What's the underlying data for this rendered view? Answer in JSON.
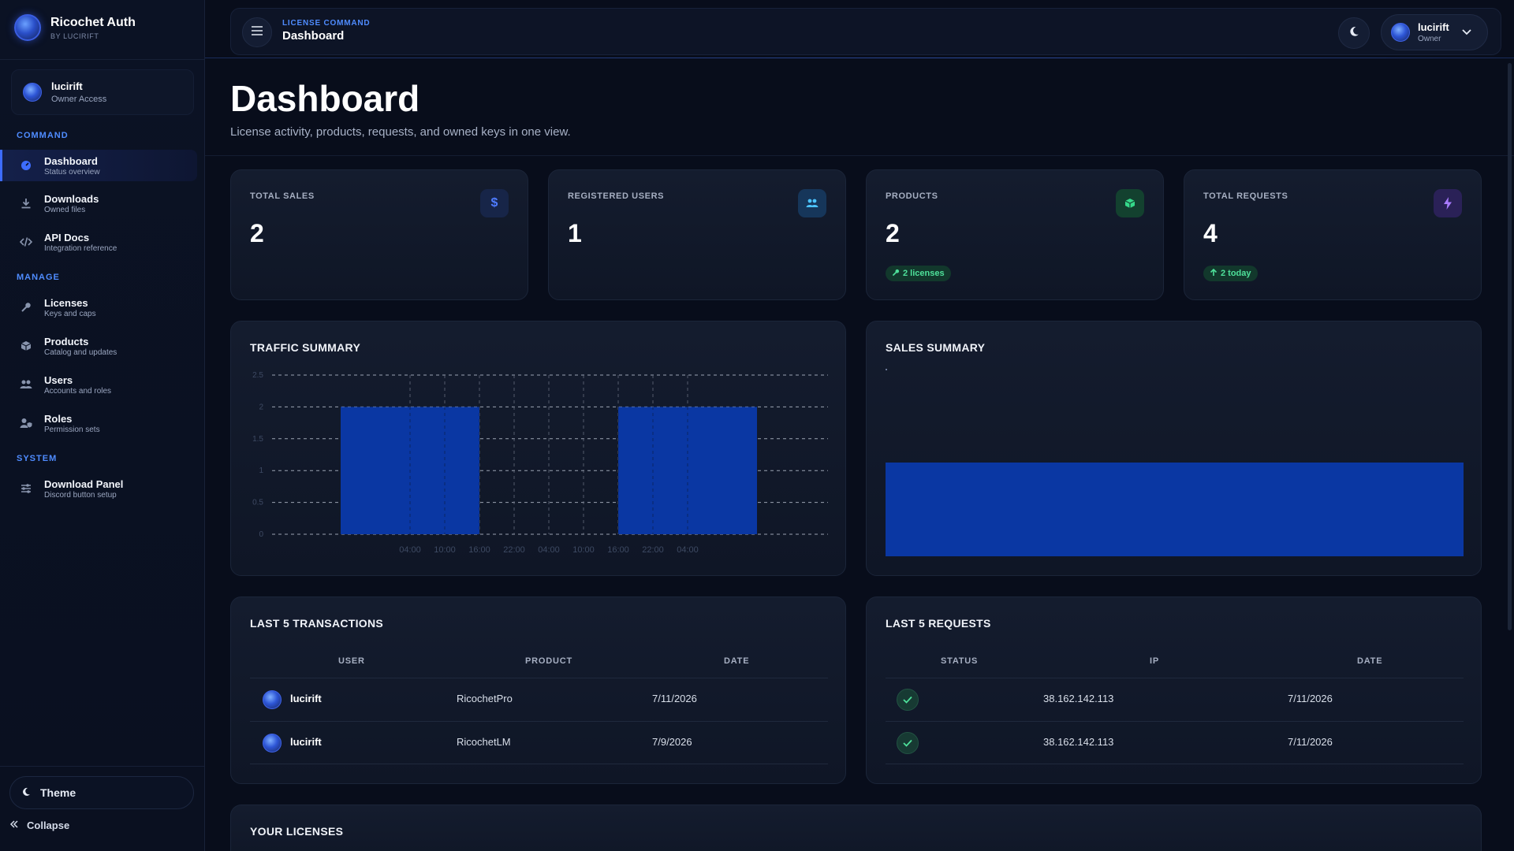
{
  "brand": {
    "name": "Ricochet Auth",
    "sub": "BY LUCIRIFT"
  },
  "user_card": {
    "name": "lucirift",
    "role": "Owner Access"
  },
  "sidebar": {
    "sections": {
      "command": "COMMAND",
      "manage": "MANAGE",
      "system": "SYSTEM"
    },
    "items": [
      {
        "title": "Dashboard",
        "sub": "Status overview",
        "icon": "gauge-icon",
        "active": true
      },
      {
        "title": "Downloads",
        "sub": "Owned files",
        "icon": "download-icon"
      },
      {
        "title": "API Docs",
        "sub": "Integration reference",
        "icon": "code-icon"
      },
      {
        "title": "Licenses",
        "sub": "Keys and caps",
        "icon": "key-icon"
      },
      {
        "title": "Products",
        "sub": "Catalog and updates",
        "icon": "box-icon"
      },
      {
        "title": "Users",
        "sub": "Accounts and roles",
        "icon": "users-icon"
      },
      {
        "title": "Roles",
        "sub": "Permission sets",
        "icon": "user-shield-icon"
      },
      {
        "title": "Download Panel",
        "sub": "Discord button setup",
        "icon": "sliders-icon"
      }
    ],
    "theme_label": "Theme",
    "collapse_label": "Collapse"
  },
  "topbar": {
    "crumb_sup": "LICENSE COMMAND",
    "crumb_title": "Dashboard",
    "user_name": "lucirift",
    "user_role": "Owner"
  },
  "header": {
    "title": "Dashboard",
    "subtitle": "License activity, products, requests, and owned keys in one view."
  },
  "stats": [
    {
      "label": "TOTAL SALES",
      "value": "2",
      "icon": "dollar-icon",
      "icon_glyph": "$",
      "icon_color": "#4f7cff",
      "icon_bg": "#172548"
    },
    {
      "label": "REGISTERED USERS",
      "value": "1",
      "icon": "users-icon",
      "icon_color": "#4cc3ff",
      "icon_bg": "#16365a"
    },
    {
      "label": "PRODUCTS",
      "value": "2",
      "icon": "box-icon",
      "icon_color": "#35d98a",
      "icon_bg": "#13412f",
      "badge": "2 licenses"
    },
    {
      "label": "TOTAL REQUESTS",
      "value": "4",
      "icon": "bolt-icon",
      "icon_color": "#a97bff",
      "icon_bg": "#2a2157",
      "badge": "2 today"
    }
  ],
  "traffic": {
    "title": "TRAFFIC SUMMARY"
  },
  "chart_data": {
    "type": "bar",
    "x": [
      "04:00",
      "10:00",
      "16:00",
      "22:00",
      "04:00",
      "10:00",
      "16:00",
      "22:00",
      "04:00"
    ],
    "yticks": [
      "0",
      "0.5",
      "1",
      "1.5",
      "2",
      "2.5"
    ],
    "ylim": [
      0,
      2.5
    ],
    "bars": [
      {
        "from": 0,
        "to": 4,
        "value": 2
      },
      {
        "from": 8,
        "to": 12,
        "value": 2
      }
    ],
    "bar_color": "#0a37a3",
    "grid": true
  },
  "sales": {
    "title": "SALES SUMMARY",
    "bar_color": "#0a37a3"
  },
  "transactions": {
    "title": "LAST 5 TRANSACTIONS",
    "columns": [
      "USER",
      "PRODUCT",
      "DATE"
    ],
    "rows": [
      {
        "user": "lucirift",
        "product": "RicochetPro",
        "date": "7/11/2026"
      },
      {
        "user": "lucirift",
        "product": "RicochetLM",
        "date": "7/9/2026"
      }
    ]
  },
  "requests": {
    "title": "LAST 5 REQUESTS",
    "columns": [
      "STATUS",
      "IP",
      "DATE"
    ],
    "rows": [
      {
        "status": "success",
        "ip": "38.162.142.113",
        "date": "7/11/2026"
      },
      {
        "status": "success",
        "ip": "38.162.142.113",
        "date": "7/11/2026"
      }
    ]
  },
  "licenses": {
    "title": "YOUR LICENSES"
  }
}
